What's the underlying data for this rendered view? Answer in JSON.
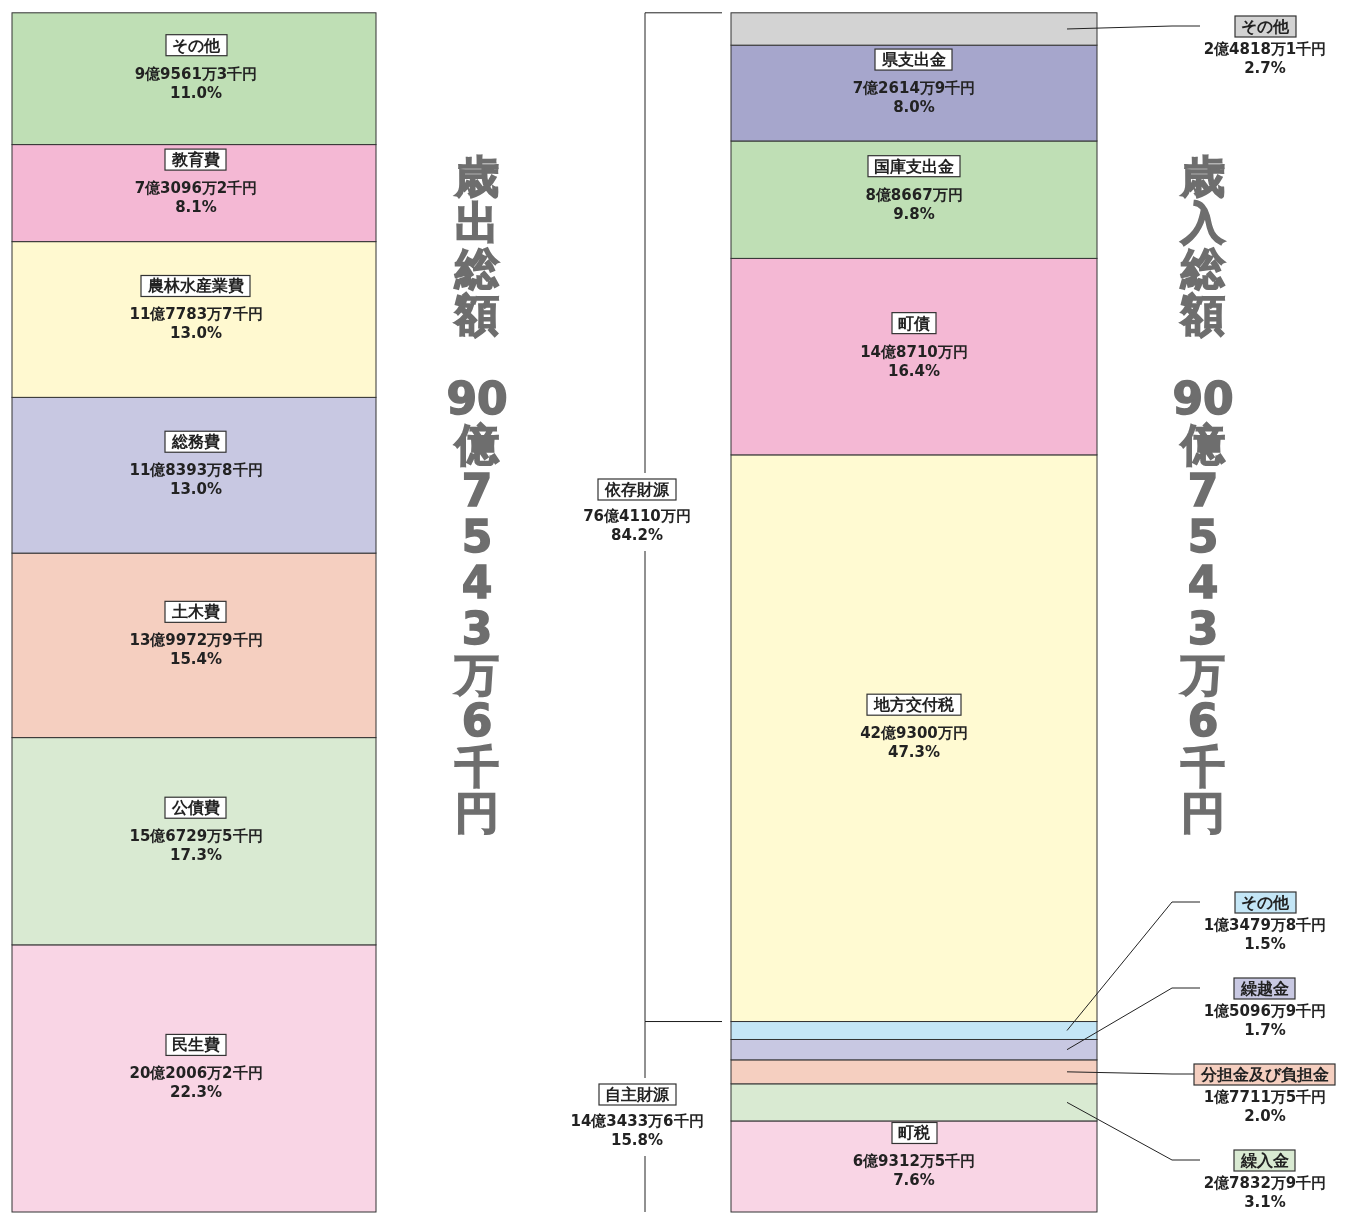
{
  "chart_data": [
    {
      "type": "bar",
      "stacked": true,
      "title": "歳出総額 90億7543万6千円",
      "categories": [
        null
      ],
      "ylim": [
        0,
        100
      ],
      "series": [
        {
          "name": "民生費",
          "color": "#f9d5e5",
          "values": [
            22.3
          ],
          "value_labels": [
            "20億2006万2千円\n22.3%"
          ]
        },
        {
          "name": "公債費",
          "color": "#d9ead2",
          "values": [
            17.3
          ],
          "value_labels": [
            "15億6729万5千円\n17.3%"
          ]
        },
        {
          "name": "土木費",
          "color": "#f5cfc0",
          "values": [
            15.4
          ],
          "value_labels": [
            "13億9972万9千円\n15.4%"
          ]
        },
        {
          "name": "総務費",
          "color": "#c8c8e2",
          "values": [
            13.0
          ],
          "value_labels": [
            "11億8393万8千円\n13.0%"
          ]
        },
        {
          "name": "農林水産業費",
          "color": "#fff9d0",
          "values": [
            13.0
          ],
          "value_labels": [
            "11億7783万7千円\n13.0%"
          ]
        },
        {
          "name": "教育費",
          "color": "#f4b8d4",
          "values": [
            8.1
          ],
          "value_labels": [
            "7億3096万2千円\n8.1%"
          ]
        },
        {
          "name": "その他",
          "color": "#bfdfb5",
          "values": [
            11.0
          ],
          "value_labels": [
            "9億9561万3千円\n11.0%"
          ]
        }
      ]
    },
    {
      "type": "bar",
      "stacked": true,
      "title": "歳入総額 90億7543万6千円",
      "categories": [
        null
      ],
      "ylim": [
        0,
        100
      ],
      "series": [
        {
          "name": "町税",
          "color": "#f9d5e5",
          "values": [
            7.6
          ],
          "value_labels": [
            "6億9312万5千円\n7.6%"
          ]
        },
        {
          "name": "繰入金",
          "color": "#d9ead2",
          "values": [
            3.1
          ],
          "value_labels": [
            "2億7832万9千円\n3.1%"
          ]
        },
        {
          "name": "分担金及び負担金",
          "color": "#f5cfc0",
          "values": [
            2.0
          ],
          "value_labels": [
            "1億7711万5千円\n2.0%"
          ]
        },
        {
          "name": "繰越金",
          "color": "#c8c8e2",
          "values": [
            1.7
          ],
          "value_labels": [
            "1億5096万9千円\n1.7%"
          ]
        },
        {
          "name": "その他",
          "color": "#c4e6f6",
          "values": [
            1.5
          ],
          "value_labels": [
            "1億3479万8千円\n1.5%"
          ]
        },
        {
          "name": "地方交付税",
          "color": "#fffad2",
          "values": [
            47.3
          ],
          "value_labels": [
            "42億9300万円\n47.3%"
          ]
        },
        {
          "name": "町債",
          "color": "#f4b8d4",
          "values": [
            16.4
          ],
          "value_labels": [
            "14億8710万円\n16.4%"
          ]
        },
        {
          "name": "国庫支出金",
          "color": "#bfdfb5",
          "values": [
            9.8
          ],
          "value_labels": [
            "8億8667万円\n9.8%"
          ]
        },
        {
          "name": "県支出金",
          "color": "#a6a6cc",
          "values": [
            8.0
          ],
          "value_labels": [
            "7億2614万9千円\n8.0%"
          ]
        },
        {
          "name": "その他",
          "color": "#d3d3d3",
          "values": [
            2.7
          ],
          "value_labels": [
            "2億4818万1千円\n2.7%"
          ]
        }
      ],
      "annotations": [
        "依存財源\n76億4110万円\n84.2%",
        "自主財源\n14億3433万6千円\n15.8%"
      ]
    }
  ]
}
